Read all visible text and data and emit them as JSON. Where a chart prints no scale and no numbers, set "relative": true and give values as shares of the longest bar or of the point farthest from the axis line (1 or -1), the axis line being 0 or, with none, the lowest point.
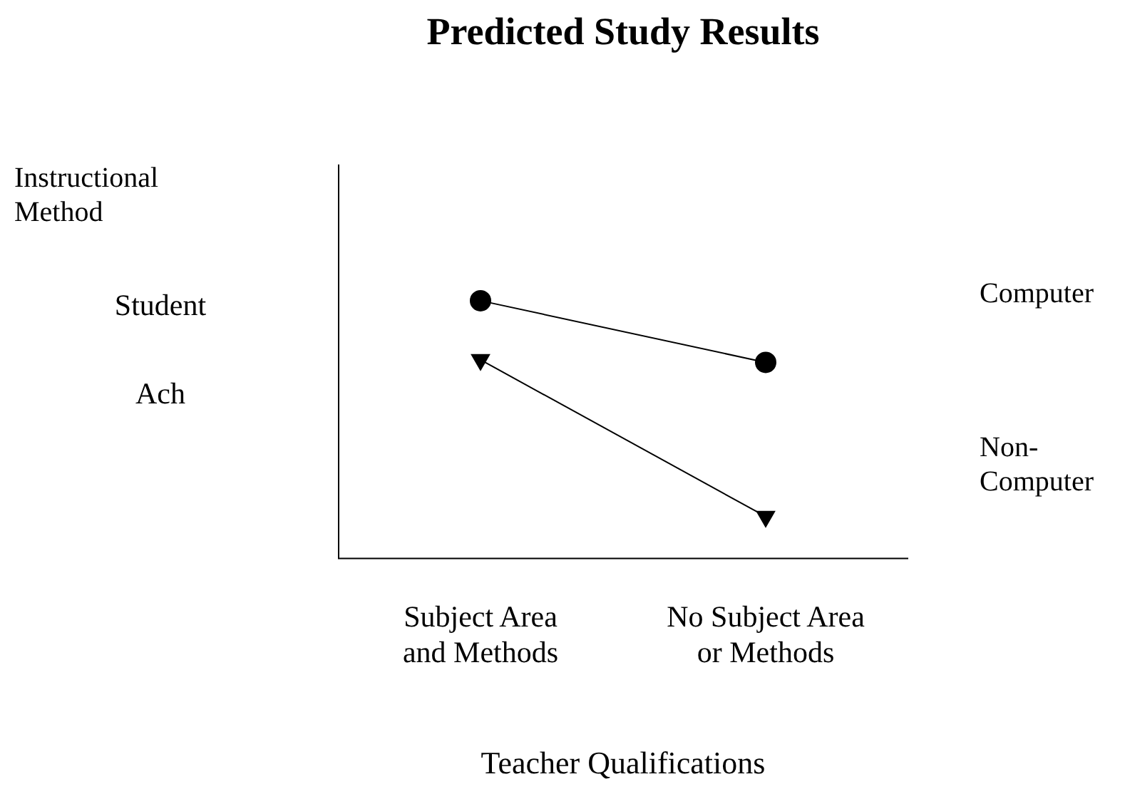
{
  "chart_data": {
    "type": "line",
    "title": "Predicted Study Results",
    "xlabel": "Teacher Qualifications",
    "ylabel": "Student Ach",
    "legend_title": "Instructional Method",
    "relative": true,
    "categories": [
      "Subject Area and Methods",
      "No Subject Area or Methods"
    ],
    "series": [
      {
        "name": "Computer",
        "color": "#000000",
        "marker": "circle",
        "values": [
          1,
          0.76
        ]
      },
      {
        "name": "Non-Computer",
        "color": "#000000",
        "marker": "triangle",
        "values": [
          0.77,
          0.16
        ]
      }
    ]
  }
}
